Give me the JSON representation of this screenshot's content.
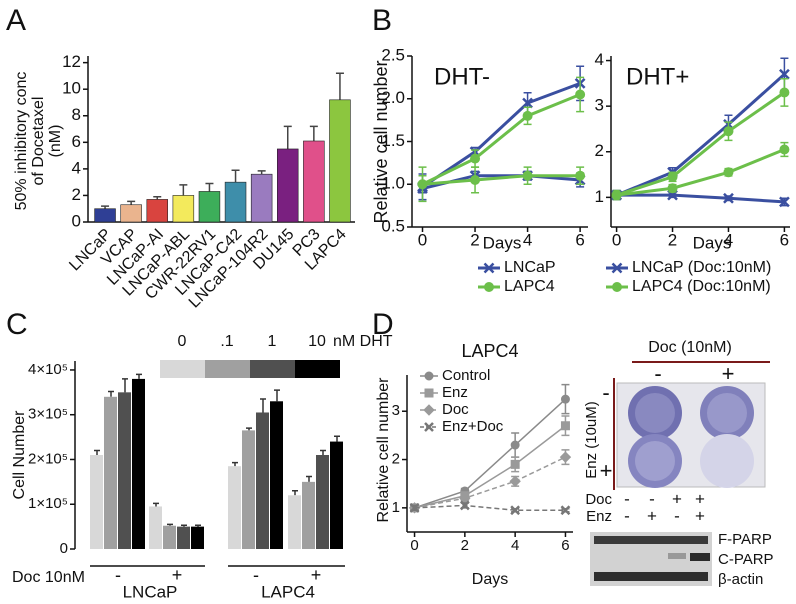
{
  "panel_labels": [
    "A",
    "B",
    "C",
    "D"
  ],
  "chart_data": [
    {
      "type": "bar",
      "ylabel": [
        "50% inhibitory conc",
        "of Docetaxel",
        "(nM)"
      ],
      "categories": [
        "LNCaP",
        "VCAP",
        "LNCaP-AI",
        "LNCaP-ABL",
        "CWR-22RV1",
        "LNCaP-C42",
        "LNCaP-104R2",
        "DU145",
        "PC3",
        "LAPC4"
      ],
      "values": [
        1.0,
        1.3,
        1.7,
        2.0,
        2.3,
        3.0,
        3.6,
        5.5,
        6.1,
        9.2
      ],
      "errors": [
        0.2,
        0.25,
        0.2,
        0.8,
        0.6,
        0.9,
        0.25,
        1.7,
        1.1,
        2.0
      ],
      "colors": [
        "#2f3f95",
        "#eab48e",
        "#d9443f",
        "#f3ea5c",
        "#3dae5a",
        "#3e8eaa",
        "#9a7bbf",
        "#7a2080",
        "#e0508a",
        "#8cc63f"
      ],
      "ylim": [
        0,
        12.5
      ],
      "yticks": [
        0,
        2,
        4,
        6,
        8,
        10,
        12
      ]
    },
    {
      "type": "line",
      "title": "DHT-",
      "ylabel": "Relative cell number",
      "xlabel": "Days",
      "x": [
        0,
        2,
        4,
        6
      ],
      "xlim": [
        -0.4,
        6.3
      ],
      "xticks": [
        0,
        2,
        4,
        6
      ],
      "ylim": [
        0.5,
        2.5
      ],
      "yticks": [
        {
          "value": 0.5,
          "label": "0.5"
        },
        {
          "value": 1.0,
          "label": "1.0"
        },
        {
          "value": 1.5,
          "label": "1.5"
        },
        {
          "value": 2.0,
          "label": "2.0"
        },
        {
          "value": 2.5,
          "label": "2.5"
        }
      ],
      "series": [
        {
          "name": "LNCaP",
          "color": "#3a4fa0",
          "marker": "x",
          "values": [
            0.97,
            1.38,
            1.95,
            2.18
          ],
          "errors": [
            0.15,
            0.05,
            0.12,
            0.2
          ]
        },
        {
          "name": "LAPC4",
          "color": "#6cbf4a",
          "marker": "circle",
          "values": [
            1.0,
            1.3,
            1.8,
            2.05
          ],
          "errors": [
            0.1,
            0.1,
            0.1,
            0.2
          ]
        },
        {
          "name": "LNCaP (Doc:10nM)",
          "color": "#3a4fa0",
          "marker": "x",
          "values": [
            0.95,
            1.1,
            1.1,
            1.05
          ],
          "errors": [
            0.05,
            0.05,
            0.05,
            0.08
          ]
        },
        {
          "name": "LAPC4 (Doc:10nM)",
          "color": "#6cbf4a",
          "marker": "circle",
          "values": [
            1.0,
            1.05,
            1.1,
            1.1
          ],
          "errors": [
            0.2,
            0.15,
            0.1,
            0.1
          ]
        }
      ]
    },
    {
      "type": "line",
      "title": "DHT+",
      "xlabel": "Days",
      "x": [
        0,
        2,
        4,
        6
      ],
      "xlim": [
        -0.2,
        6.2
      ],
      "xticks": [
        0,
        2,
        4,
        6
      ],
      "ylim": [
        0.35,
        4.1
      ],
      "yticks": [
        1,
        2,
        3,
        4
      ],
      "series": [
        {
          "color": "#3a4fa0",
          "marker": "x",
          "values": [
            1.05,
            1.55,
            2.6,
            3.7
          ],
          "errors": [
            0.1,
            0.1,
            0.2,
            0.35
          ]
        },
        {
          "color": "#6cbf4a",
          "marker": "circle",
          "values": [
            1.05,
            1.45,
            2.45,
            3.3
          ],
          "errors": [
            0.1,
            0.1,
            0.2,
            0.3
          ]
        },
        {
          "color": "#3a4fa0",
          "marker": "x",
          "values": [
            1.05,
            1.05,
            0.98,
            0.9
          ],
          "errors": [
            0.05,
            0.05,
            0.05,
            0.08
          ]
        },
        {
          "color": "#6cbf4a",
          "marker": "circle",
          "values": [
            1.05,
            1.2,
            1.55,
            2.05
          ],
          "errors": [
            0.08,
            0.08,
            0.08,
            0.15
          ]
        }
      ]
    },
    {
      "type": "grouped_bar",
      "ylabel": "Cell Number",
      "legend_unit": "nM DHT",
      "row_label": "Doc 10nM",
      "doc_signs": [
        "-",
        "+",
        "-",
        "+"
      ],
      "cell_lines": [
        "LNCaP",
        "LAPC4"
      ],
      "ylim": [
        0,
        420000
      ],
      "yticks": [
        0,
        {
          "value": 100000,
          "label": "1×10⁵"
        },
        {
          "value": 200000,
          "label": "2×10⁵"
        },
        {
          "value": 300000,
          "label": "3×10⁵"
        },
        {
          "value": 400000,
          "label": "4×10⁵"
        }
      ],
      "series": [
        {
          "name": "0",
          "color": "#d8d8d8",
          "values": [
            210000,
            95000,
            185000,
            120000
          ],
          "errors": [
            10000,
            7000,
            8000,
            10000
          ]
        },
        {
          "name": ".1",
          "color": "#a0a0a0",
          "values": [
            340000,
            52000,
            265000,
            150000
          ],
          "errors": [
            12000,
            3000,
            5000,
            12000
          ]
        },
        {
          "name": "1",
          "color": "#505050",
          "values": [
            350000,
            50000,
            305000,
            210000
          ],
          "errors": [
            30000,
            3000,
            30000,
            10000
          ]
        },
        {
          "name": "10",
          "color": "#000000",
          "values": [
            380000,
            50000,
            330000,
            240000
          ],
          "errors": [
            10000,
            3000,
            25000,
            12000
          ]
        }
      ]
    },
    {
      "type": "line",
      "title": "LAPC4",
      "ylabel": "Relative cell number",
      "xlabel": "Days",
      "x": [
        0,
        2,
        4,
        6
      ],
      "xlim": [
        -0.3,
        6.3
      ],
      "xticks": [
        0,
        2,
        4,
        6
      ],
      "ylim": [
        0.5,
        3.75
      ],
      "yticks": [
        1,
        2,
        3
      ],
      "series": [
        {
          "name": "Control",
          "color": "#8a8a8a",
          "marker": "circle",
          "dash": false,
          "values": [
            1.0,
            1.35,
            2.3,
            3.25
          ],
          "errors": [
            0.05,
            0.05,
            0.25,
            0.3
          ]
        },
        {
          "name": "Enz",
          "color": "#9a9a9a",
          "marker": "square",
          "dash": false,
          "values": [
            1.0,
            1.25,
            1.9,
            2.7
          ],
          "errors": [
            0.05,
            0.05,
            0.15,
            0.2
          ]
        },
        {
          "name": "Doc",
          "color": "#9a9a9a",
          "marker": "diamond",
          "dash": true,
          "values": [
            1.0,
            1.2,
            1.55,
            2.05
          ],
          "errors": [
            0.05,
            0.05,
            0.1,
            0.15
          ]
        },
        {
          "name": "Enz+Doc",
          "color": "#777777",
          "marker": "x",
          "dash": true,
          "values": [
            1.0,
            1.05,
            0.95,
            0.95
          ],
          "errors": [
            0.05,
            0.05,
            0.03,
            0.03
          ]
        }
      ]
    }
  ],
  "plate": {
    "title": "Doc (10nM)",
    "cols": [
      "-",
      "+"
    ],
    "row_title": "Enz (10uM)",
    "rows": [
      "-",
      "+"
    ]
  },
  "blot": {
    "doc_label": "Doc",
    "enz_label": "Enz",
    "doc": [
      "-",
      "-",
      "+",
      "+"
    ],
    "enz": [
      "-",
      "+",
      "-",
      "+"
    ],
    "bands": [
      "F-PARP",
      "C-PARP",
      "β-actin"
    ]
  }
}
